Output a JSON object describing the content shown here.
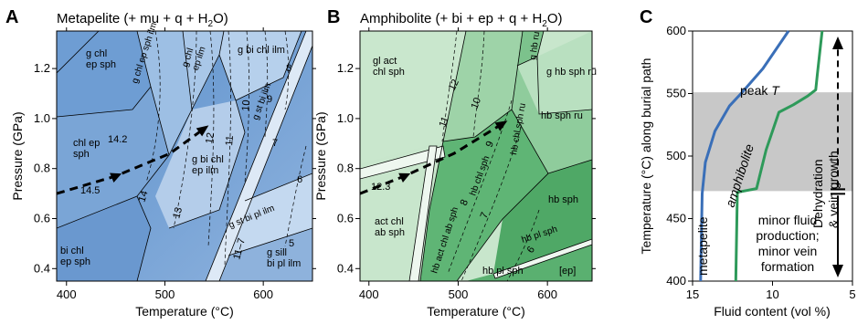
{
  "panels": [
    {
      "letter": "A",
      "title": "Metapelite (+ mu + q + H2O)",
      "title_main": "Metapelite (+ mu + q + H",
      "title_sub": "2",
      "title_end": "O)",
      "xlabel": "Temperature (°C)",
      "ylabel": "Pressure (GPa)",
      "xlim": [
        390,
        650
      ],
      "ylim": [
        0.35,
        1.35
      ],
      "xticks": [
        "400",
        "500",
        "600"
      ],
      "yticks": [
        "0.4",
        "0.6",
        "0.8",
        "1.0",
        "1.2"
      ],
      "fields": [
        "g chl\nep sph",
        "g chl ep sph ilm",
        "g chl\nep ilm",
        "g bi chl ilm",
        "g st bi ilm",
        "chl ep\nsph",
        "g bi chl\nep ilm",
        "g st bi pl ilm",
        "bi chl\nep sph",
        "g sill\nbi pl ilm"
      ],
      "isopleths": [
        "14.5",
        "14.2",
        "14",
        "13",
        "12",
        "11",
        "10",
        "9",
        "8",
        "7",
        "6",
        "5",
        "11–7"
      ]
    },
    {
      "letter": "B",
      "title": "Amphibolite (+ bi + ep + q + H2O)",
      "title_main": "Amphibolite (+ bi + ep + q + H",
      "title_sub": "2",
      "title_end": "O)",
      "xlabel": "Temperature (°C)",
      "ylabel": "Pressure (GPa)",
      "xlim": [
        390,
        650
      ],
      "ylim": [
        0.35,
        1.35
      ],
      "xticks": [
        "400",
        "500",
        "600"
      ],
      "yticks": [
        "0.4",
        "0.6",
        "0.8",
        "1.0",
        "1.2"
      ],
      "fields": [
        "gl act\nchl sph",
        "g hb ru",
        "g hb sph ru",
        "hb sph ru",
        "hb chl sph ru",
        "hb chl sph",
        "act chl\nab sph",
        "hb act chl ab sph",
        "hb sph",
        "hb pl sph",
        "hb pl sph",
        "[ep]"
      ],
      "isopleths": [
        "12.3",
        "12",
        "11",
        "10",
        "9",
        "8",
        "7",
        "6"
      ]
    }
  ],
  "panel_c": {
    "letter": "C",
    "xlabel": "Fluid content (vol %)",
    "ylabel": "Temperature (°C) along burial path",
    "xlim": [
      15,
      5
    ],
    "ylim": [
      400,
      600
    ],
    "xticks": [
      "15",
      "10",
      "5"
    ],
    "yticks": [
      "400",
      "450",
      "500",
      "550",
      "600"
    ],
    "shade_range": [
      472,
      551
    ],
    "peak_label": "peak T",
    "peak_main": "peak ",
    "peak_italic": "T",
    "label_metapelite": "metapelite",
    "label_amphibolite": "amphibolite",
    "label_dehydration": "Dehydration\n& vein growth",
    "label_minor": "minor fluid\nproduction;\nminor vein\nformation"
  },
  "chart_data": [
    {
      "type": "line",
      "title": "Metapelite (+ mu + q + H2O)",
      "xlabel": "Temperature (°C)",
      "ylabel": "Pressure (GPa)",
      "xlim": [
        390,
        650
      ],
      "ylim": [
        0.35,
        1.35
      ],
      "series": [
        {
          "values": [
            [
              390,
              0.7
            ],
            [
              450,
              0.77
            ],
            [
              505,
              0.86
            ],
            [
              540,
              0.96
            ]
          ]
        }
      ]
    },
    {
      "type": "line",
      "title": "Amphibolite (+ bi + ep + q + H2O)",
      "xlabel": "Temperature (°C)",
      "ylabel": "Pressure (GPa)",
      "xlim": [
        390,
        650
      ],
      "ylim": [
        0.35,
        1.35
      ],
      "series": [
        {
          "values": [
            [
              390,
              0.7
            ],
            [
              440,
              0.77
            ],
            [
              495,
              0.86
            ],
            [
              550,
              0.98
            ]
          ]
        }
      ]
    },
    {
      "type": "line",
      "xlabel": "Fluid content (vol %)",
      "ylabel": "Temperature (°C) along burial path",
      "xlim": [
        15,
        5
      ],
      "ylim": [
        400,
        600
      ],
      "series": [
        {
          "name": "metapelite",
          "color": "#3a6fb8",
          "values": [
            [
              14.5,
              400
            ],
            [
              14.4,
              470
            ],
            [
              14.2,
              495
            ],
            [
              13.6,
              520
            ],
            [
              12.7,
              540
            ],
            [
              11.9,
              551
            ],
            [
              10.6,
              570
            ],
            [
              9.0,
              600
            ]
          ]
        },
        {
          "name": "amphibolite",
          "color": "#2e9a5a",
          "values": [
            [
              12.3,
              400
            ],
            [
              12.2,
              471
            ],
            [
              11.0,
              474
            ],
            [
              10.4,
              505
            ],
            [
              9.6,
              535
            ],
            [
              8.7,
              541
            ],
            [
              7.8,
              548
            ],
            [
              7.3,
              553
            ],
            [
              7.2,
              565
            ],
            [
              6.9,
              600
            ]
          ]
        }
      ]
    }
  ]
}
